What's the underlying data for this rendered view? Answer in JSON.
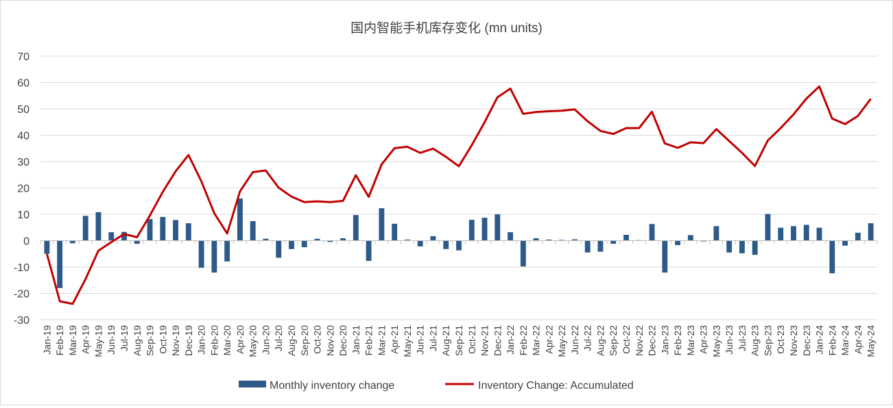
{
  "chart_data": {
    "type": "bar+line",
    "title": "国内智能手机库存变化 (mn units)",
    "xlabel": "",
    "ylabel": "",
    "ylim": [
      -30,
      70
    ],
    "yticks": [
      -30,
      -20,
      -10,
      0,
      10,
      20,
      30,
      40,
      50,
      60,
      70
    ],
    "grid": true,
    "legend_position": "bottom",
    "categories": [
      "Jan-19",
      "Feb-19",
      "Mar-19",
      "Apr-19",
      "May-19",
      "Jun-19",
      "Jul-19",
      "Aug-19",
      "Sep-19",
      "Oct-19",
      "Nov-19",
      "Dec-19",
      "Jan-20",
      "Feb-20",
      "Mar-20",
      "Apr-20",
      "May-20",
      "Jun-20",
      "Jul-20",
      "Aug-20",
      "Sep-20",
      "Oct-20",
      "Nov-20",
      "Dec-20",
      "Jan-21",
      "Feb-21",
      "Mar-21",
      "Apr-21",
      "May-21",
      "Jun-21",
      "Jul-21",
      "Aug-21",
      "Sep-21",
      "Oct-21",
      "Nov-21",
      "Dec-21",
      "Jan-22",
      "Feb-22",
      "Mar-22",
      "Apr-22",
      "May-22",
      "Jun-22",
      "Jul-22",
      "Aug-22",
      "Sep-22",
      "Oct-22",
      "Nov-22",
      "Dec-22",
      "Jan-23",
      "Feb-23",
      "Mar-23",
      "Apr-23",
      "May-23",
      "Jun-23",
      "Jul-23",
      "Aug-23",
      "Sep-23",
      "Oct-23",
      "Nov-23",
      "Dec-23",
      "Jan-24",
      "Feb-24",
      "Mar-24",
      "Apr-24",
      "May-24"
    ],
    "series": [
      {
        "name": "Monthly inventory change",
        "type": "bar",
        "color": "#2E5A8A",
        "values": [
          -5,
          -18,
          -1,
          9.4,
          10.8,
          3.2,
          3.3,
          -1.2,
          8.2,
          9,
          7.8,
          6.6,
          -10.3,
          -12.1,
          -7.9,
          16,
          7.4,
          0.7,
          -6.5,
          -3.2,
          -2.5,
          0.7,
          -0.5,
          0.9,
          9.7,
          -7.7,
          12.3,
          6.4,
          0.4,
          -2.2,
          1.7,
          -3.2,
          -3.7,
          7.9,
          8.7,
          10,
          3.2,
          -9.8,
          0.9,
          0.4,
          0.3,
          0.5,
          -4.5,
          -4.2,
          -1.2,
          2.2,
          0.2,
          6.3,
          -12.1,
          -1.7,
          2.1,
          -0.3,
          5.5,
          -4.5,
          -4.8,
          -5.4,
          10.1,
          4.9,
          5.5,
          6,
          4.9,
          -12.4,
          -1.9,
          3,
          6.6
        ]
      },
      {
        "name": "Inventory Change: Accumulated",
        "type": "line",
        "color": "#C00000",
        "values": [
          -5,
          -23,
          -24,
          -14.6,
          -3.8,
          -0.6,
          2.5,
          1.3,
          9.5,
          18.5,
          26.3,
          32.5,
          22.5,
          10.4,
          2.7,
          18.7,
          26,
          26.6,
          20.1,
          16.7,
          14.6,
          14.9,
          14.6,
          15.1,
          24.8,
          16.6,
          28.9,
          35.1,
          35.6,
          33.3,
          34.9,
          31.8,
          28.2,
          36.2,
          44.9,
          54.4,
          57.7,
          48.1,
          48.8,
          49.1,
          49.3,
          49.8,
          45.3,
          41.6,
          40.5,
          42.7,
          42.7,
          48.9,
          36.9,
          35.2,
          37.3,
          37,
          42.3,
          37.8,
          33.3,
          28.3,
          38,
          42.7,
          47.9,
          53.9,
          58.5,
          46.3,
          44.2,
          47.3,
          53.8
        ]
      }
    ]
  }
}
